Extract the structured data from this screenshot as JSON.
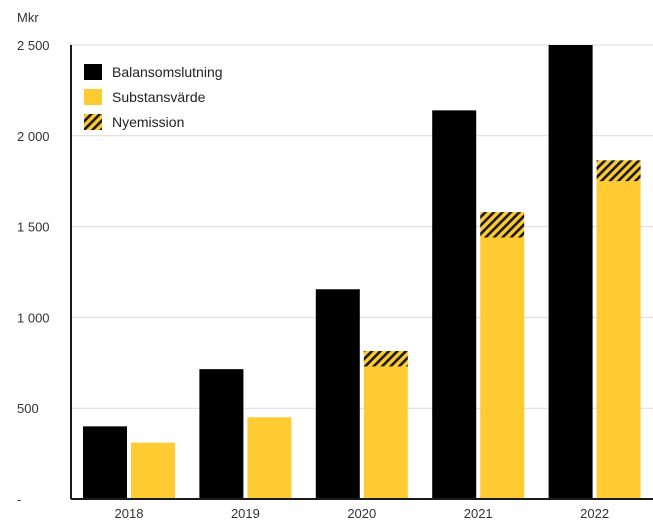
{
  "chart_data": {
    "type": "bar",
    "ylabel": "Mkr",
    "categories": [
      "2018",
      "2019",
      "2020",
      "2021",
      "2022"
    ],
    "ylim": [
      0,
      2500
    ],
    "yticks": [
      {
        "value": 0,
        "label": "-"
      },
      {
        "value": 500,
        "label": "500"
      },
      {
        "value": 1000,
        "label": "1 000"
      },
      {
        "value": 1500,
        "label": "1 500"
      },
      {
        "value": 2000,
        "label": "2 000"
      },
      {
        "value": 2500,
        "label": "2 500"
      }
    ],
    "grid": true,
    "legend_position": "top-left",
    "series": [
      {
        "name": "Balansomslutning",
        "color": "#000000",
        "values": [
          400,
          715,
          1155,
          2140,
          2500
        ]
      },
      {
        "name": "Substansvärde",
        "color": "#ffcb33",
        "values": [
          310,
          450,
          730,
          1440,
          1750
        ]
      },
      {
        "name": "Nyemission",
        "color": "#ffcb33",
        "pattern": "diagonal-hatch",
        "stacked_on": "Substansvärde",
        "values": [
          0,
          0,
          85,
          140,
          115
        ]
      }
    ]
  }
}
